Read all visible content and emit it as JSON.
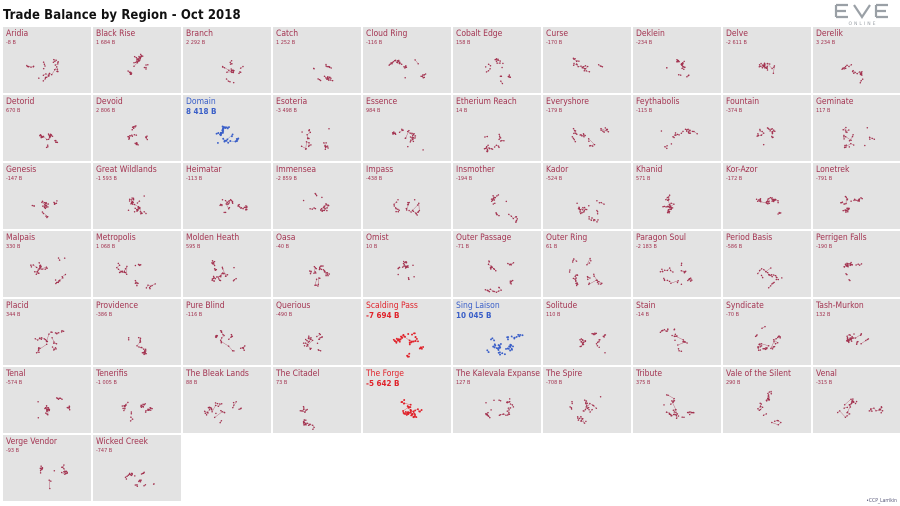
{
  "title": "Trade Balance by Region - Oct 2018",
  "logo": {
    "main": "EVE",
    "sub": "ONLINE"
  },
  "credit": "•CCP_Larrikin",
  "colors": {
    "positive_big": "#3a5fc8",
    "negative_big": "#e0232b",
    "normal": "#a33350",
    "tile_bg": "#e3e3e3"
  },
  "chart_data": {
    "type": "small-multiples",
    "title": "Trade Balance by Region - Oct 2018",
    "regions": [
      {
        "name": "Aridia",
        "value": "-8 B",
        "emphasis": "normal"
      },
      {
        "name": "Black Rise",
        "value": "1 684 B",
        "emphasis": "normal"
      },
      {
        "name": "Branch",
        "value": "2 292 B",
        "emphasis": "normal"
      },
      {
        "name": "Catch",
        "value": "1 252 B",
        "emphasis": "normal"
      },
      {
        "name": "Cloud Ring",
        "value": "-116 B",
        "emphasis": "normal"
      },
      {
        "name": "Cobalt Edge",
        "value": "158 B",
        "emphasis": "normal"
      },
      {
        "name": "Curse",
        "value": "-170 B",
        "emphasis": "normal"
      },
      {
        "name": "Deklein",
        "value": "-234 B",
        "emphasis": "normal"
      },
      {
        "name": "Delve",
        "value": "-2 611 B",
        "emphasis": "normal"
      },
      {
        "name": "Derelik",
        "value": "3 234 B",
        "emphasis": "normal"
      },
      {
        "name": "Detorid",
        "value": "670 B",
        "emphasis": "normal"
      },
      {
        "name": "Devoid",
        "value": "2 806 B",
        "emphasis": "normal"
      },
      {
        "name": "Domain",
        "value": "8 418 B",
        "emphasis": "positive"
      },
      {
        "name": "Esoteria",
        "value": "-3 498 B",
        "emphasis": "normal"
      },
      {
        "name": "Essence",
        "value": "984 B",
        "emphasis": "normal"
      },
      {
        "name": "Etherium Reach",
        "value": "14 B",
        "emphasis": "normal"
      },
      {
        "name": "Everyshore",
        "value": "-179 B",
        "emphasis": "normal"
      },
      {
        "name": "Feythabolis",
        "value": "-115 B",
        "emphasis": "normal"
      },
      {
        "name": "Fountain",
        "value": "-374 B",
        "emphasis": "normal"
      },
      {
        "name": "Geminate",
        "value": "117 B",
        "emphasis": "normal"
      },
      {
        "name": "Genesis",
        "value": "-147 B",
        "emphasis": "normal"
      },
      {
        "name": "Great Wildlands",
        "value": "-1 593 B",
        "emphasis": "normal"
      },
      {
        "name": "Heimatar",
        "value": "-113 B",
        "emphasis": "normal"
      },
      {
        "name": "Immensea",
        "value": "-2 859 B",
        "emphasis": "normal"
      },
      {
        "name": "Impass",
        "value": "-438 B",
        "emphasis": "normal"
      },
      {
        "name": "Insmother",
        "value": "-194 B",
        "emphasis": "normal"
      },
      {
        "name": "Kador",
        "value": "-524 B",
        "emphasis": "normal"
      },
      {
        "name": "Khanid",
        "value": "571 B",
        "emphasis": "normal"
      },
      {
        "name": "Kor-Azor",
        "value": "-172 B",
        "emphasis": "normal"
      },
      {
        "name": "Lonetrek",
        "value": "-791 B",
        "emphasis": "normal"
      },
      {
        "name": "Malpais",
        "value": "330 B",
        "emphasis": "normal"
      },
      {
        "name": "Metropolis",
        "value": "1 068 B",
        "emphasis": "normal"
      },
      {
        "name": "Molden Heath",
        "value": "595 B",
        "emphasis": "normal"
      },
      {
        "name": "Oasa",
        "value": "-40 B",
        "emphasis": "normal"
      },
      {
        "name": "Omist",
        "value": "10 B",
        "emphasis": "normal"
      },
      {
        "name": "Outer Passage",
        "value": "-71 B",
        "emphasis": "normal"
      },
      {
        "name": "Outer Ring",
        "value": "61 B",
        "emphasis": "normal"
      },
      {
        "name": "Paragon Soul",
        "value": "-2 183 B",
        "emphasis": "normal"
      },
      {
        "name": "Period Basis",
        "value": "-586 B",
        "emphasis": "normal"
      },
      {
        "name": "Perrigen Falls",
        "value": "-190 B",
        "emphasis": "normal"
      },
      {
        "name": "Placid",
        "value": "344 B",
        "emphasis": "normal"
      },
      {
        "name": "Providence",
        "value": "-386 B",
        "emphasis": "normal"
      },
      {
        "name": "Pure Blind",
        "value": "-116 B",
        "emphasis": "normal"
      },
      {
        "name": "Querious",
        "value": "-490 B",
        "emphasis": "normal"
      },
      {
        "name": "Scalding Pass",
        "value": "-7 694 B",
        "emphasis": "negative"
      },
      {
        "name": "Sing Laison",
        "value": "10 045 B",
        "emphasis": "positive"
      },
      {
        "name": "Solitude",
        "value": "110 B",
        "emphasis": "normal"
      },
      {
        "name": "Stain",
        "value": "-14 B",
        "emphasis": "normal"
      },
      {
        "name": "Syndicate",
        "value": "-70 B",
        "emphasis": "normal"
      },
      {
        "name": "Tash-Murkon",
        "value": "132 B",
        "emphasis": "normal"
      },
      {
        "name": "Tenal",
        "value": "-574 B",
        "emphasis": "normal"
      },
      {
        "name": "Tenerifis",
        "value": "-1 005 B",
        "emphasis": "normal"
      },
      {
        "name": "The Bleak Lands",
        "value": "88 B",
        "emphasis": "normal"
      },
      {
        "name": "The Citadel",
        "value": "73 B",
        "emphasis": "normal"
      },
      {
        "name": "The Forge",
        "value": "-5 642 B",
        "emphasis": "negative"
      },
      {
        "name": "The Kalevala Expanse",
        "value": "127 B",
        "emphasis": "normal"
      },
      {
        "name": "The Spire",
        "value": "-708 B",
        "emphasis": "normal"
      },
      {
        "name": "Tribute",
        "value": "375 B",
        "emphasis": "normal"
      },
      {
        "name": "Vale of the Silent",
        "value": "290 B",
        "emphasis": "normal"
      },
      {
        "name": "Venal",
        "value": "-315 B",
        "emphasis": "normal"
      },
      {
        "name": "Verge Vendor",
        "value": "-93 B",
        "emphasis": "normal"
      },
      {
        "name": "Wicked Creek",
        "value": "-747 B",
        "emphasis": "normal"
      }
    ]
  }
}
